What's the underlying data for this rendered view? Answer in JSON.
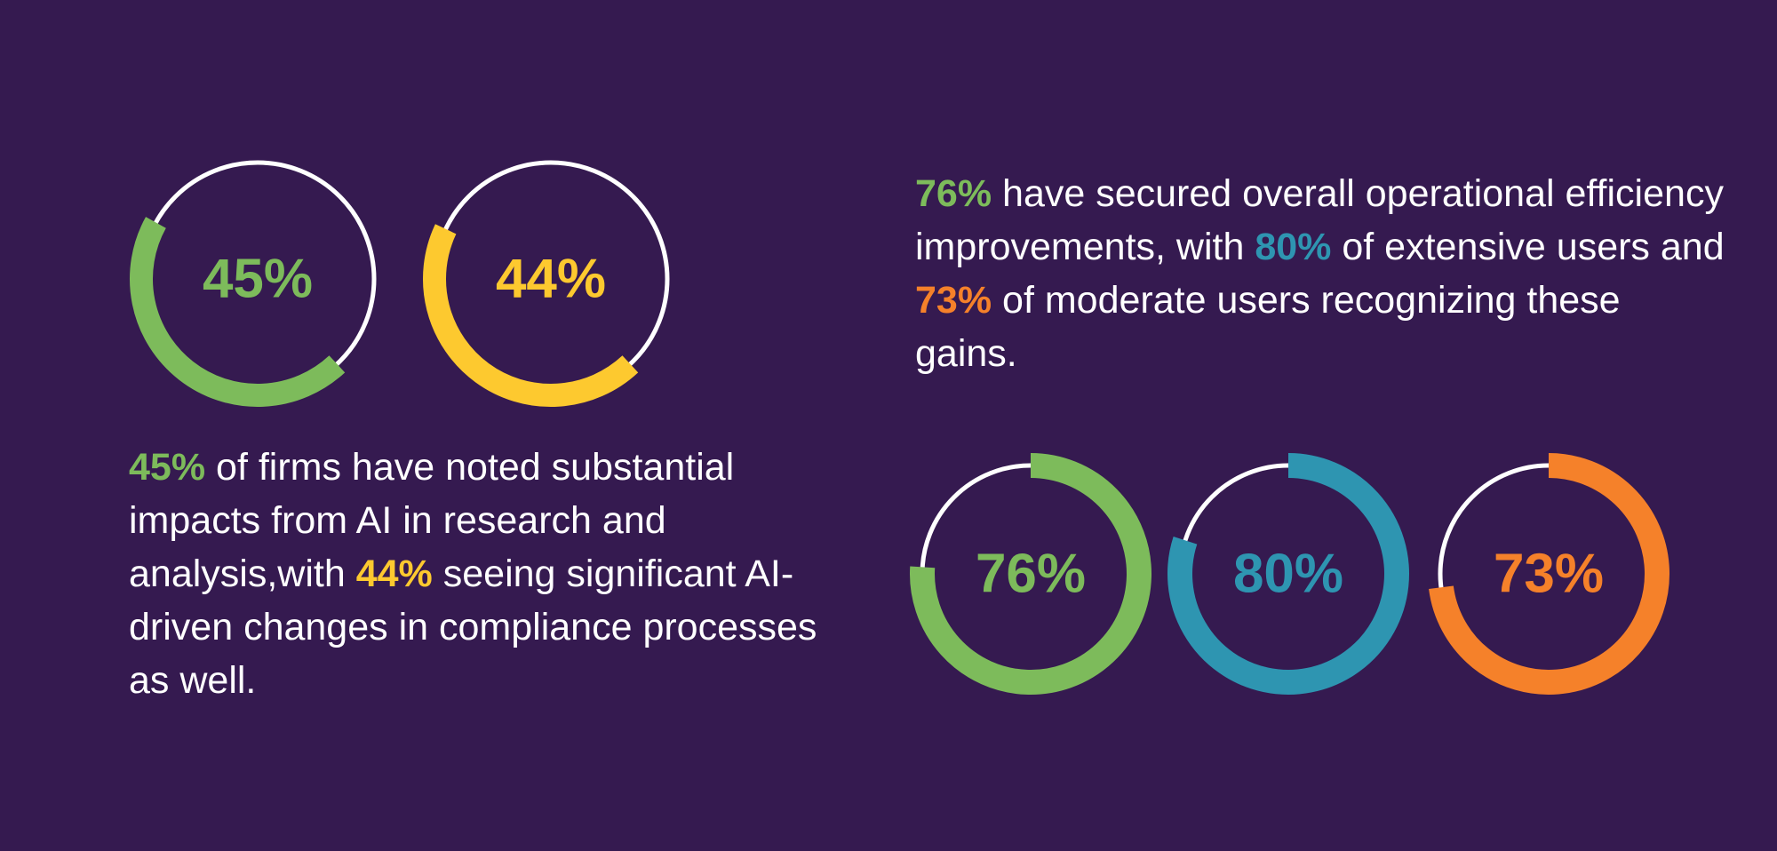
{
  "colors": {
    "background": "#351a50",
    "green": "#7dbb5b",
    "yellow": "#fdc92f",
    "blue": "#2e95b1",
    "orange": "#f5812a",
    "track": "#ffffff"
  },
  "chart_data": [
    {
      "type": "donut",
      "series": [
        {
          "label": "45%",
          "value": 45,
          "color": "#7dbb5b"
        },
        {
          "label": "44%",
          "value": 44,
          "color": "#fdc92f"
        }
      ]
    },
    {
      "type": "donut",
      "series": [
        {
          "label": "76%",
          "value": 76,
          "color": "#7dbb5b"
        },
        {
          "label": "80%",
          "value": 80,
          "color": "#2e95b1"
        },
        {
          "label": "73%",
          "value": 73,
          "color": "#f5812a"
        }
      ]
    }
  ],
  "right_text": {
    "pct1": "76%",
    "t1": " have secured overall operational efficiency improvements, with ",
    "pct2": "80%",
    "t2": " of extensive users and ",
    "pct3": "73%",
    "t3": " of moderate users recognizing these gains."
  },
  "left_text": {
    "pct1": "45%",
    "t1": " of firms have noted substantial impacts from AI in research and analysis,with ",
    "pct2": "44%",
    "t2": " seeing significant AI-driven changes in compliance processes as well."
  }
}
